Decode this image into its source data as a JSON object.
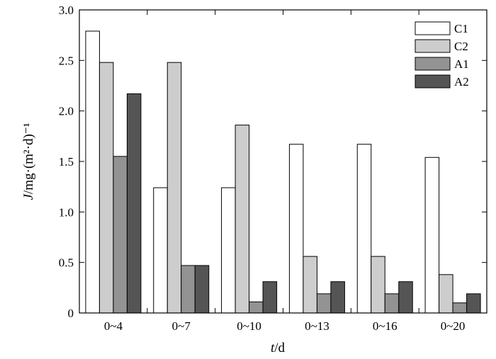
{
  "chart_data": {
    "type": "bar",
    "categories": [
      "0~4",
      "0~7",
      "0~10",
      "0~13",
      "0~16",
      "0~20"
    ],
    "series": [
      {
        "name": "C1",
        "values": [
          2.79,
          1.24,
          1.24,
          1.67,
          1.67,
          1.54
        ],
        "color": "#ffffff"
      },
      {
        "name": "C2",
        "values": [
          2.48,
          2.48,
          1.86,
          0.56,
          0.56,
          0.38
        ],
        "color": "#cdcdcd"
      },
      {
        "name": "A1",
        "values": [
          1.55,
          0.47,
          0.11,
          0.19,
          0.19,
          0.1
        ],
        "color": "#939393"
      },
      {
        "name": "A2",
        "values": [
          2.17,
          0.47,
          0.31,
          0.31,
          0.31,
          0.19
        ],
        "color": "#555555"
      }
    ],
    "ylim": [
      0,
      3.0
    ],
    "yticks": [
      "0",
      "0.5",
      "1.0",
      "1.5",
      "2.0",
      "2.5",
      "3.0"
    ],
    "xlabel_italic": "t",
    "xlabel_rest": "/d",
    "ylabel_italic": "J",
    "ylabel_rest": "/mg·(m²·d)⁻¹",
    "legend_position": "top-right",
    "grid": false
  }
}
